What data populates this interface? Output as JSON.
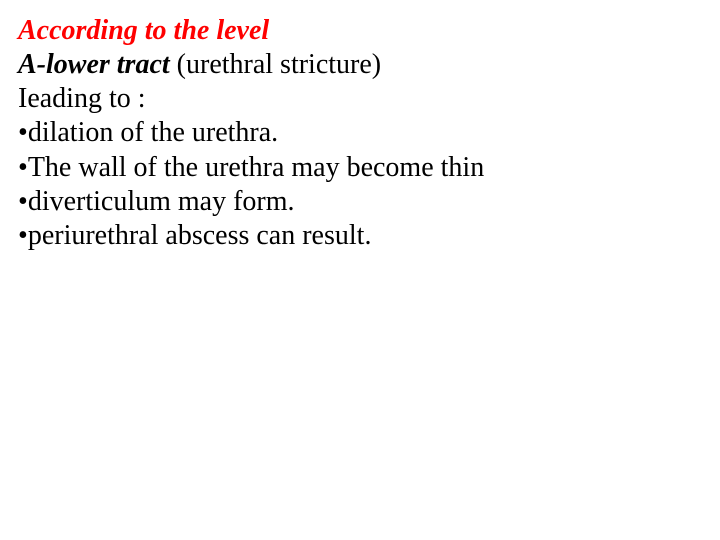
{
  "slide": {
    "heading": "According to the level",
    "subheading_bold": "A-lower tract",
    "subheading_paren": " (urethral stricture)",
    "leading": "Ieading to :",
    "bullets": [
      "dilation of the urethra.",
      "The wall of the urethra may become thin",
      "diverticulum may form.",
      "periurethral abscess can result."
    ]
  },
  "style": {
    "background_color": "#ffffff",
    "text_color": "#000000",
    "heading_color": "#ff0000",
    "font_family": "Times New Roman",
    "base_fontsize": 28,
    "bullet_char": "•"
  }
}
